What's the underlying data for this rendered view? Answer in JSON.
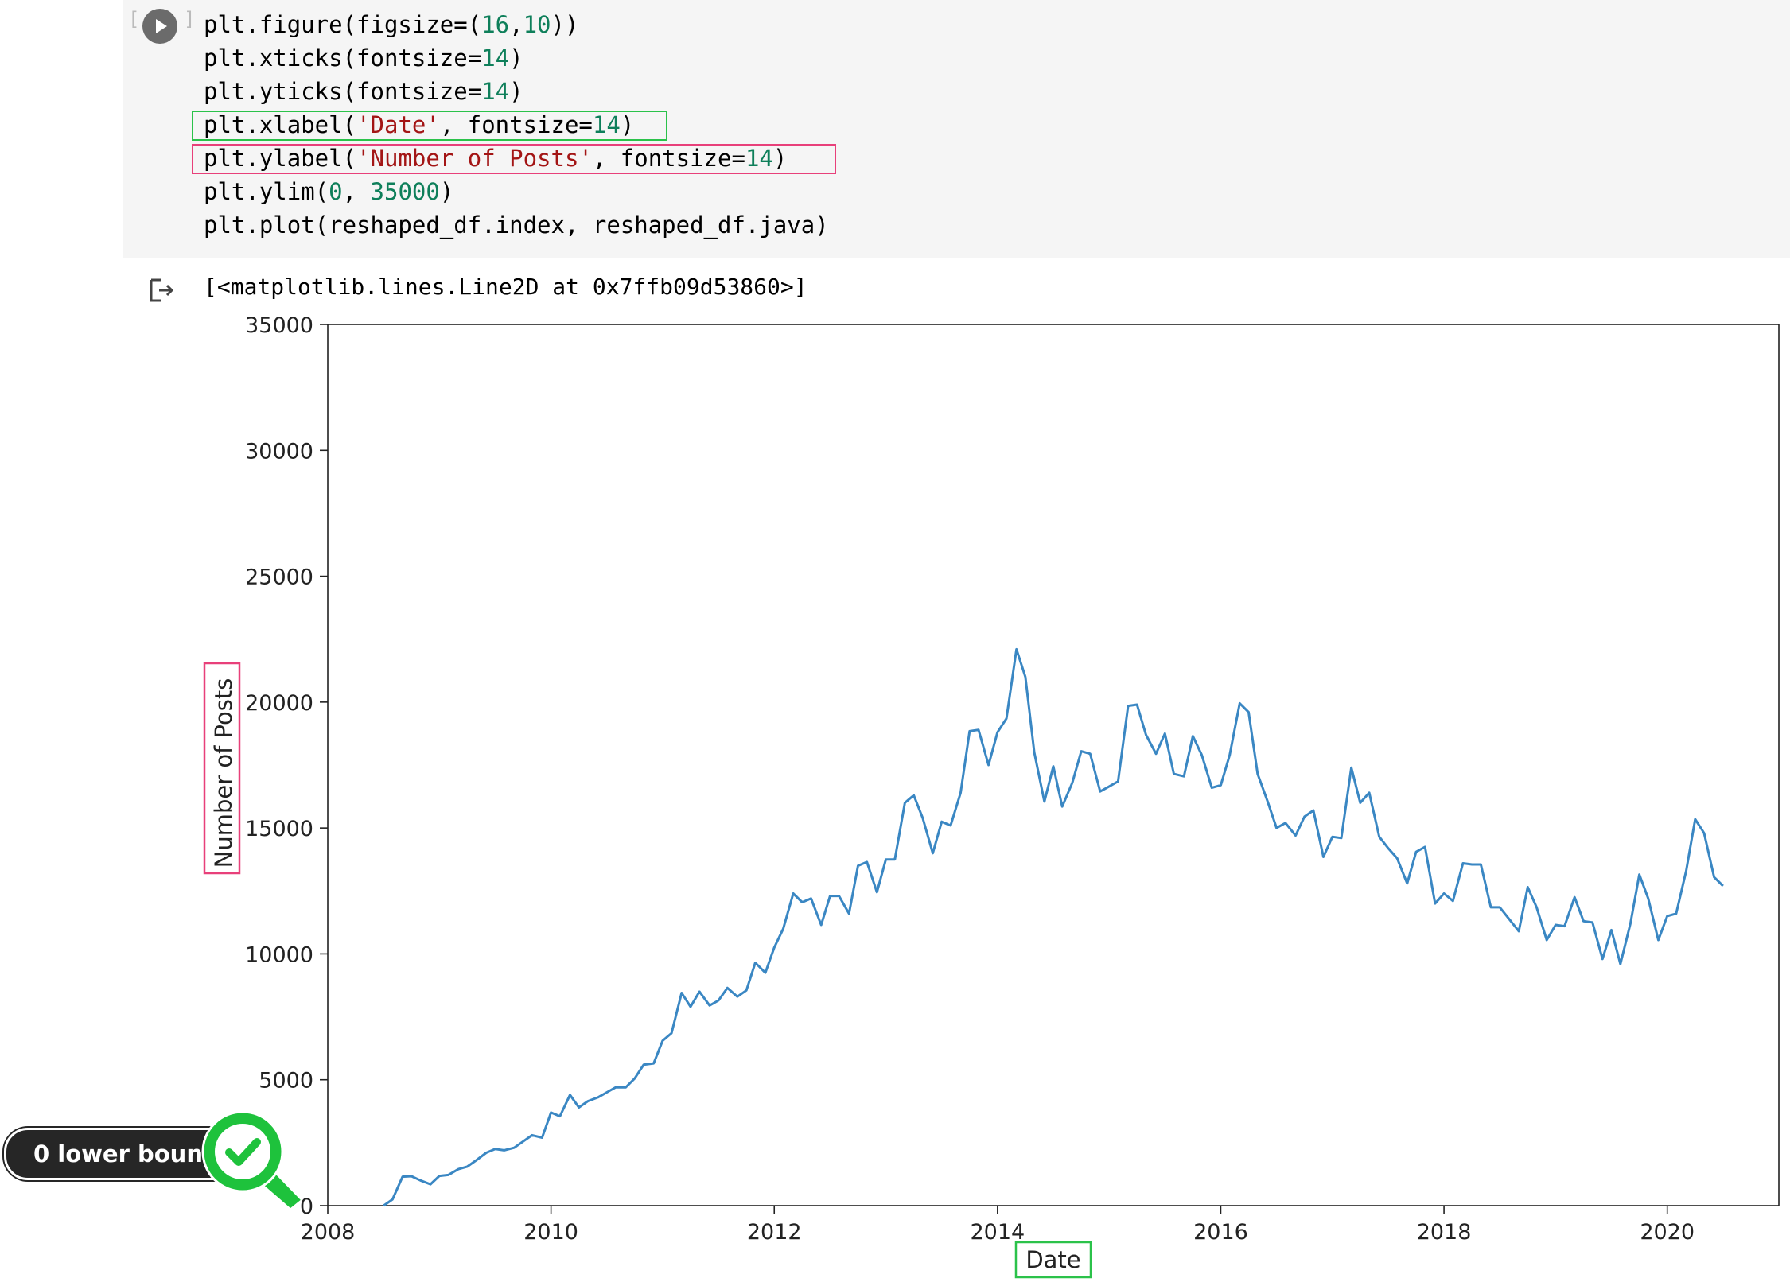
{
  "code_cell": {
    "lines": [
      [
        {
          "t": "plt.figure(figsize=(",
          "c": ""
        },
        {
          "t": "16",
          "c": "num"
        },
        {
          "t": ",",
          "c": ""
        },
        {
          "t": "10",
          "c": "num"
        },
        {
          "t": "))",
          "c": ""
        }
      ],
      [
        {
          "t": "plt.xticks(fontsize=",
          "c": ""
        },
        {
          "t": "14",
          "c": "num"
        },
        {
          "t": ")",
          "c": ""
        }
      ],
      [
        {
          "t": "plt.yticks(fontsize=",
          "c": ""
        },
        {
          "t": "14",
          "c": "num"
        },
        {
          "t": ")",
          "c": ""
        }
      ],
      [
        {
          "t": "plt.xlabel(",
          "c": ""
        },
        {
          "t": "'Date'",
          "c": "str"
        },
        {
          "t": ", fontsize=",
          "c": ""
        },
        {
          "t": "14",
          "c": "num"
        },
        {
          "t": ")",
          "c": ""
        }
      ],
      [
        {
          "t": "plt.ylabel(",
          "c": ""
        },
        {
          "t": "'Number of Posts'",
          "c": "str"
        },
        {
          "t": ", fontsize=",
          "c": ""
        },
        {
          "t": "14",
          "c": "num"
        },
        {
          "t": ")",
          "c": ""
        }
      ],
      [
        {
          "t": "plt.ylim(",
          "c": ""
        },
        {
          "t": "0",
          "c": "num"
        },
        {
          "t": ", ",
          "c": ""
        },
        {
          "t": "35000",
          "c": "num"
        },
        {
          "t": ")",
          "c": ""
        }
      ],
      [
        {
          "t": "plt.plot(reshaped_df.index, reshaped_df.java)",
          "c": ""
        }
      ]
    ]
  },
  "output": {
    "text": "[<matplotlib.lines.Line2D at 0x7ffb09d53860>]"
  },
  "callout": {
    "label": "0 lower bound"
  },
  "colors": {
    "line": "#3a87c3",
    "highlight_green": "#2bc24a",
    "highlight_pink": "#e8407a",
    "badge_green": "#1ec23c"
  },
  "chart_data": {
    "type": "line",
    "xlabel": "Date",
    "ylabel": "Number of Posts",
    "ylim": [
      0,
      35000
    ],
    "xlim": [
      2008.0,
      2021.0
    ],
    "yticks": [
      0,
      5000,
      10000,
      15000,
      20000,
      25000,
      30000,
      35000
    ],
    "xticks": [
      2008,
      2010,
      2012,
      2014,
      2016,
      2018,
      2020
    ],
    "grid": false,
    "series": [
      {
        "x": [
          2008.5,
          2008.58,
          2008.67,
          2008.75,
          2008.83,
          2008.92,
          2009.0,
          2009.08,
          2009.17,
          2009.25,
          2009.33,
          2009.42,
          2009.5,
          2009.58,
          2009.67,
          2009.75,
          2009.83,
          2009.92,
          2010.0,
          2010.08,
          2010.17,
          2010.25,
          2010.33,
          2010.42,
          2010.5,
          2010.58,
          2010.67,
          2010.75,
          2010.83,
          2010.92,
          2011.0,
          2011.08,
          2011.17,
          2011.25,
          2011.33,
          2011.42,
          2011.5,
          2011.58,
          2011.67,
          2011.75,
          2011.83,
          2011.92,
          2012.0,
          2012.08,
          2012.17,
          2012.25,
          2012.33,
          2012.42,
          2012.5,
          2012.58,
          2012.67,
          2012.75,
          2012.83,
          2012.92,
          2013.0,
          2013.08,
          2013.17,
          2013.25,
          2013.33,
          2013.42,
          2013.5,
          2013.58,
          2013.67,
          2013.75,
          2013.83,
          2013.92,
          2014.0,
          2014.08,
          2014.17,
          2014.25,
          2014.33,
          2014.42,
          2014.5,
          2014.58,
          2014.67,
          2014.75,
          2014.83,
          2014.92,
          2015.0,
          2015.08,
          2015.17,
          2015.25,
          2015.33,
          2015.42,
          2015.5,
          2015.58,
          2015.67,
          2015.75,
          2015.83,
          2015.92,
          2016.0,
          2016.08,
          2016.17,
          2016.25,
          2016.33,
          2016.42,
          2016.5,
          2016.58,
          2016.67,
          2016.75,
          2016.83,
          2016.92,
          2017.0,
          2017.08,
          2017.17,
          2017.25,
          2017.33,
          2017.42,
          2017.5,
          2017.58,
          2017.67,
          2017.75,
          2017.83,
          2017.92,
          2018.0,
          2018.08,
          2018.17,
          2018.25,
          2018.33,
          2018.42,
          2018.5,
          2018.58,
          2018.67,
          2018.75,
          2018.83,
          2018.92,
          2019.0,
          2019.08,
          2019.17,
          2019.25,
          2019.33,
          2019.42,
          2019.5,
          2019.58,
          2019.67,
          2019.75,
          2019.83,
          2019.92,
          2020.0,
          2020.08,
          2020.17,
          2020.25,
          2020.33,
          2020.42,
          2020.5
        ],
        "y": [
          0,
          250,
          1150,
          1170,
          1000,
          850,
          1180,
          1220,
          1450,
          1550,
          1800,
          2100,
          2250,
          2200,
          2300,
          2550,
          2800,
          2700,
          3700,
          3550,
          4400,
          3900,
          4150,
          4300,
          4500,
          4700,
          4700,
          5050,
          5600,
          5650,
          6550,
          6850,
          8450,
          7900,
          8500,
          7950,
          8150,
          8650,
          8300,
          8550,
          9650,
          9250,
          10250,
          11000,
          12400,
          12050,
          12200,
          11150,
          12300,
          12300,
          11600,
          13500,
          13650,
          12450,
          13750,
          13750,
          16000,
          16300,
          15400,
          14000,
          15250,
          15100,
          16400,
          18850,
          18900,
          17500,
          18800,
          19350,
          22100,
          21000,
          18000,
          16050,
          17450,
          15850,
          16800,
          18050,
          17950,
          16450,
          16650,
          16850,
          19850,
          19900,
          18700,
          17950,
          18750,
          17150,
          17050,
          18650,
          17900,
          16600,
          16700,
          17900,
          19950,
          19600,
          17150,
          16050,
          15000,
          15200,
          14700,
          15450,
          15700,
          13850,
          14650,
          14600,
          17400,
          16000,
          16400,
          14650,
          14200,
          13800,
          12800,
          14050,
          14250,
          12000,
          12400,
          12100,
          13600,
          13550,
          13550,
          11850,
          11850,
          11400,
          10900,
          12650,
          11850,
          10550,
          11150,
          11100,
          12250,
          11300,
          11250,
          9800,
          10950,
          9600,
          11200,
          13150,
          12200,
          10550,
          11500,
          11600,
          13300,
          15350,
          14800,
          13050,
          12700
        ]
      }
    ]
  }
}
